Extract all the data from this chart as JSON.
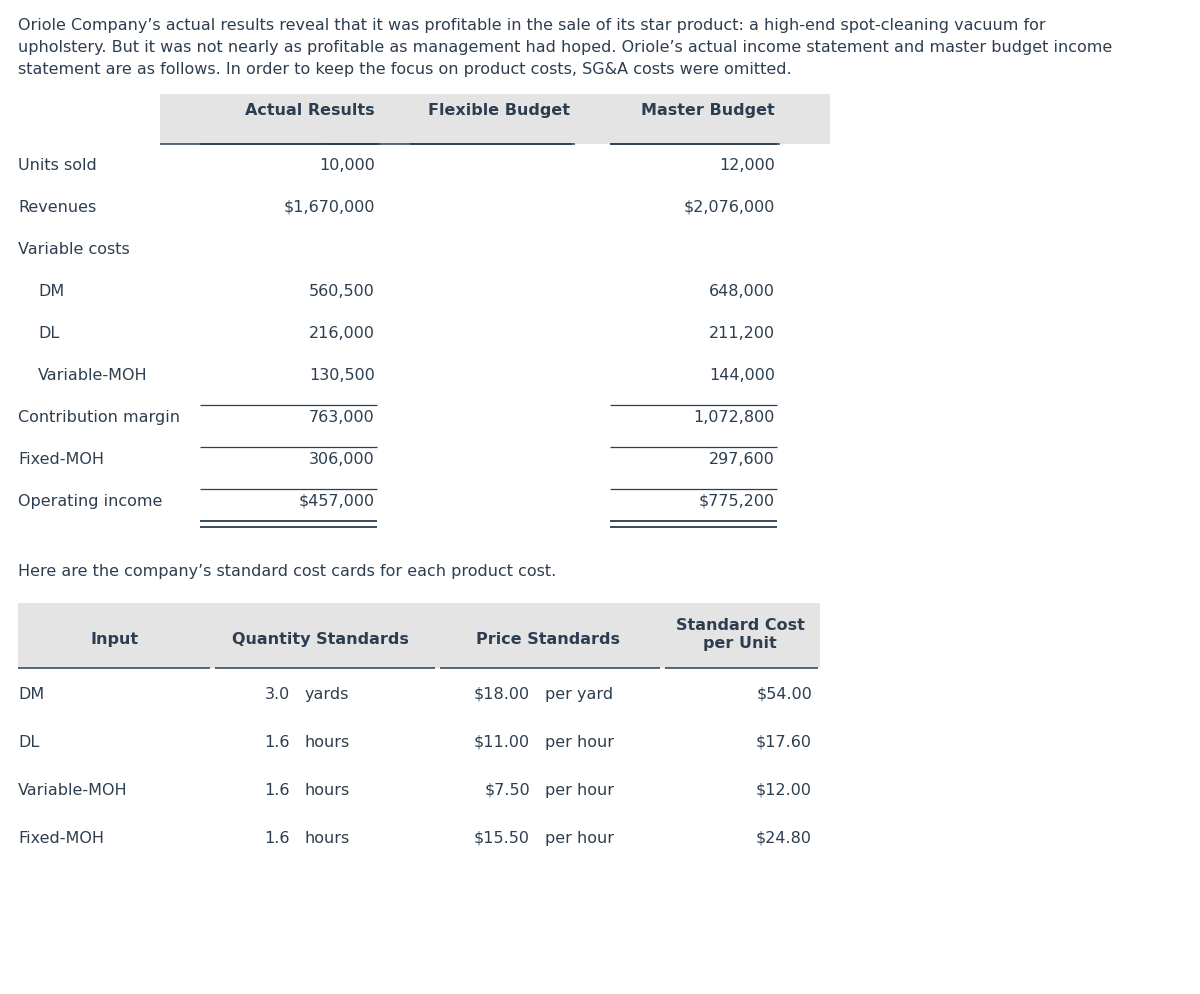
{
  "intro_text_lines": [
    "Oriole Company’s actual results reveal that it was profitable in the sale of its star product: a high-end spot-cleaning vacuum for",
    "upholstery. But it was not nearly as profitable as management had hoped. Oriole’s actual income statement and master budget income",
    "statement are as follows. In order to keep the focus on product costs, SG&A costs were omitted."
  ],
  "table1": {
    "header": [
      "",
      "Actual Results",
      "Flexible Budget",
      "Master Budget"
    ],
    "rows": [
      {
        "label": "Units sold",
        "actual": "10,000",
        "flexible": "",
        "master": "12,000",
        "indent": false
      },
      {
        "label": "Revenues",
        "actual": "$1,670,000",
        "flexible": "",
        "master": "$2,076,000",
        "indent": false
      },
      {
        "label": "Variable costs",
        "actual": "",
        "flexible": "",
        "master": "",
        "indent": false
      },
      {
        "label": "DM",
        "actual": "560,500",
        "flexible": "",
        "master": "648,000",
        "indent": true
      },
      {
        "label": "DL",
        "actual": "216,000",
        "flexible": "",
        "master": "211,200",
        "indent": true
      },
      {
        "label": "Variable-MOH",
        "actual": "130,500",
        "flexible": "",
        "master": "144,000",
        "indent": true
      },
      {
        "label": "Contribution margin",
        "actual": "763,000",
        "flexible": "",
        "master": "1,072,800",
        "indent": false
      },
      {
        "label": "Fixed-MOH",
        "actual": "306,000",
        "flexible": "",
        "master": "297,600",
        "indent": false
      },
      {
        "label": "Operating income",
        "actual": "$457,000",
        "flexible": "",
        "master": "$775,200",
        "indent": false
      }
    ],
    "line_above_rows": [
      6,
      7,
      8
    ]
  },
  "intro_text2": "Here are the company’s standard cost cards for each product cost.",
  "table2": {
    "rows": [
      {
        "input": "DM",
        "qty_num": "3.0",
        "qty_unit": "yards",
        "price_num": "$18.00",
        "price_unit": "per yard",
        "std_cost": "$54.00"
      },
      {
        "input": "DL",
        "qty_num": "1.6",
        "qty_unit": "hours",
        "price_num": "$11.00",
        "price_unit": "per hour",
        "std_cost": "$17.60"
      },
      {
        "input": "Variable-MOH",
        "qty_num": "1.6",
        "qty_unit": "hours",
        "price_num": "$7.50",
        "price_unit": "per hour",
        "std_cost": "$12.00"
      },
      {
        "input": "Fixed-MOH",
        "qty_num": "1.6",
        "qty_unit": "hours",
        "price_num": "$15.50",
        "price_unit": "per hour",
        "std_cost": "$24.80"
      }
    ]
  },
  "bg_color": "#ffffff",
  "text_color": "#2d3e50",
  "header_bg": "#e4e4e4",
  "font_size": 11.5,
  "header_font_size": 11.5
}
